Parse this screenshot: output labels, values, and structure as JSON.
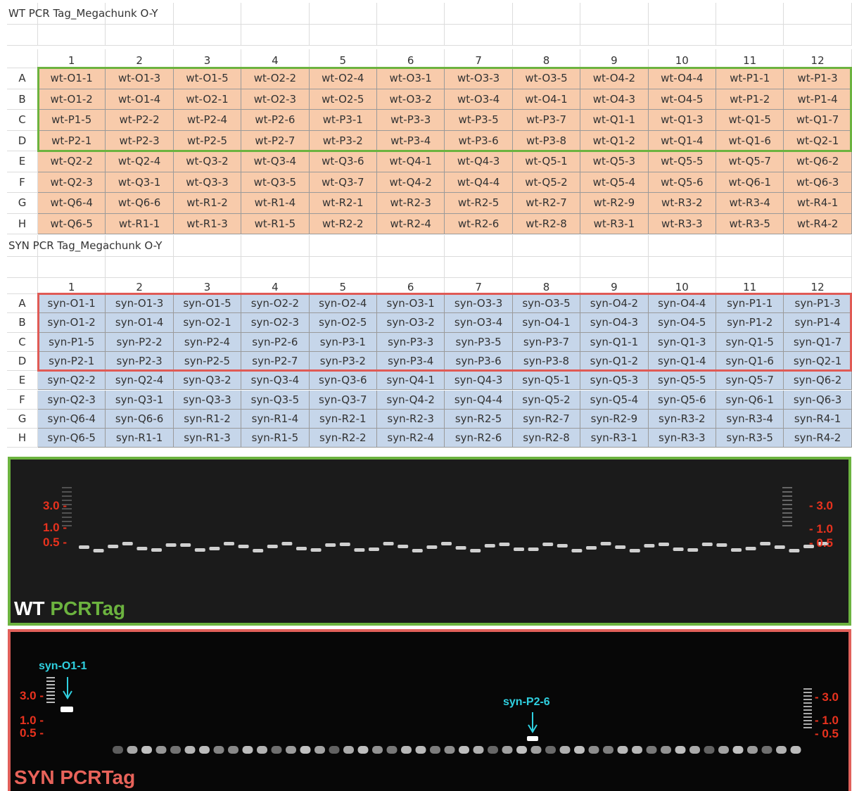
{
  "wt_table": {
    "title": "WT PCR Tag_Megachunk O-Y",
    "columns": [
      1,
      2,
      3,
      4,
      5,
      6,
      7,
      8,
      9,
      10,
      11,
      12
    ],
    "rows": [
      {
        "label": "A",
        "cells": [
          "wt-O1-1",
          "wt-O1-3",
          "wt-O1-5",
          "wt-O2-2",
          "wt-O2-4",
          "wt-O3-1",
          "wt-O3-3",
          "wt-O3-5",
          "wt-O4-2",
          "wt-O4-4",
          "wt-P1-1",
          "wt-P1-3"
        ]
      },
      {
        "label": "B",
        "cells": [
          "wt-O1-2",
          "wt-O1-4",
          "wt-O2-1",
          "wt-O2-3",
          "wt-O2-5",
          "wt-O3-2",
          "wt-O3-4",
          "wt-O4-1",
          "wt-O4-3",
          "wt-O4-5",
          "wt-P1-2",
          "wt-P1-4"
        ]
      },
      {
        "label": "C",
        "cells": [
          "wt-P1-5",
          "wt-P2-2",
          "wt-P2-4",
          "wt-P2-6",
          "wt-P3-1",
          "wt-P3-3",
          "wt-P3-5",
          "wt-P3-7",
          "wt-Q1-1",
          "wt-Q1-3",
          "wt-Q1-5",
          "wt-Q1-7"
        ]
      },
      {
        "label": "D",
        "cells": [
          "wt-P2-1",
          "wt-P2-3",
          "wt-P2-5",
          "wt-P2-7",
          "wt-P3-2",
          "wt-P3-4",
          "wt-P3-6",
          "wt-P3-8",
          "wt-Q1-2",
          "wt-Q1-4",
          "wt-Q1-6",
          "wt-Q2-1"
        ]
      },
      {
        "label": "E",
        "cells": [
          "wt-Q2-2",
          "wt-Q2-4",
          "wt-Q3-2",
          "wt-Q3-4",
          "wt-Q3-6",
          "wt-Q4-1",
          "wt-Q4-3",
          "wt-Q5-1",
          "wt-Q5-3",
          "wt-Q5-5",
          "wt-Q5-7",
          "wt-Q6-2"
        ]
      },
      {
        "label": "F",
        "cells": [
          "wt-Q2-3",
          "wt-Q3-1",
          "wt-Q3-3",
          "wt-Q3-5",
          "wt-Q3-7",
          "wt-Q4-2",
          "wt-Q4-4",
          "wt-Q5-2",
          "wt-Q5-4",
          "wt-Q5-6",
          "wt-Q6-1",
          "wt-Q6-3"
        ]
      },
      {
        "label": "G",
        "cells": [
          "wt-Q6-4",
          "wt-Q6-6",
          "wt-R1-2",
          "wt-R1-4",
          "wt-R2-1",
          "wt-R2-3",
          "wt-R2-5",
          "wt-R2-7",
          "wt-R2-9",
          "wt-R3-2",
          "wt-R3-4",
          "wt-R4-1"
        ]
      },
      {
        "label": "H",
        "cells": [
          "wt-Q6-5",
          "wt-R1-1",
          "wt-R1-3",
          "wt-R1-5",
          "wt-R2-2",
          "wt-R2-4",
          "wt-R2-6",
          "wt-R2-8",
          "wt-R3-1",
          "wt-R3-3",
          "wt-R3-5",
          "wt-R4-2"
        ]
      }
    ]
  },
  "syn_table": {
    "title": "SYN PCR Tag_Megachunk O-Y",
    "columns": [
      1,
      2,
      3,
      4,
      5,
      6,
      7,
      8,
      9,
      10,
      11,
      12
    ],
    "rows": [
      {
        "label": "A",
        "cells": [
          "syn-O1-1",
          "syn-O1-3",
          "syn-O1-5",
          "syn-O2-2",
          "syn-O2-4",
          "syn-O3-1",
          "syn-O3-3",
          "syn-O3-5",
          "syn-O4-2",
          "syn-O4-4",
          "syn-P1-1",
          "syn-P1-3"
        ]
      },
      {
        "label": "B",
        "cells": [
          "syn-O1-2",
          "syn-O1-4",
          "syn-O2-1",
          "syn-O2-3",
          "syn-O2-5",
          "syn-O3-2",
          "syn-O3-4",
          "syn-O4-1",
          "syn-O4-3",
          "syn-O4-5",
          "syn-P1-2",
          "syn-P1-4"
        ]
      },
      {
        "label": "C",
        "cells": [
          "syn-P1-5",
          "syn-P2-2",
          "syn-P2-4",
          "syn-P2-6",
          "syn-P3-1",
          "syn-P3-3",
          "syn-P3-5",
          "syn-P3-7",
          "syn-Q1-1",
          "syn-Q1-3",
          "syn-Q1-5",
          "syn-Q1-7"
        ]
      },
      {
        "label": "D",
        "cells": [
          "syn-P2-1",
          "syn-P2-3",
          "syn-P2-5",
          "syn-P2-7",
          "syn-P3-2",
          "syn-P3-4",
          "syn-P3-6",
          "syn-P3-8",
          "syn-Q1-2",
          "syn-Q1-4",
          "syn-Q1-6",
          "syn-Q2-1"
        ]
      },
      {
        "label": "E",
        "cells": [
          "syn-Q2-2",
          "syn-Q2-4",
          "syn-Q3-2",
          "syn-Q3-4",
          "syn-Q3-6",
          "syn-Q4-1",
          "syn-Q4-3",
          "syn-Q5-1",
          "syn-Q5-3",
          "syn-Q5-5",
          "syn-Q5-7",
          "syn-Q6-2"
        ]
      },
      {
        "label": "F",
        "cells": [
          "syn-Q2-3",
          "syn-Q3-1",
          "syn-Q3-3",
          "syn-Q3-5",
          "syn-Q3-7",
          "syn-Q4-2",
          "syn-Q4-4",
          "syn-Q5-2",
          "syn-Q5-4",
          "syn-Q5-6",
          "syn-Q6-1",
          "syn-Q6-3"
        ]
      },
      {
        "label": "G",
        "cells": [
          "syn-Q6-4",
          "syn-Q6-6",
          "syn-R1-2",
          "syn-R1-4",
          "syn-R2-1",
          "syn-R2-3",
          "syn-R2-5",
          "syn-R2-7",
          "syn-R2-9",
          "syn-R3-2",
          "syn-R3-4",
          "syn-R4-1"
        ]
      },
      {
        "label": "H",
        "cells": [
          "syn-Q6-5",
          "syn-R1-1",
          "syn-R1-3",
          "syn-R1-5",
          "syn-R2-2",
          "syn-R2-4",
          "syn-R2-6",
          "syn-R2-8",
          "syn-R3-1",
          "syn-R3-3",
          "syn-R3-5",
          "syn-R4-2"
        ]
      }
    ]
  },
  "wt_gel": {
    "size_labels_left": [
      "3.0 -",
      "1.0 -",
      "0.5 -"
    ],
    "size_labels_right": [
      "- 3.0",
      "- 1.0",
      "- 0.5"
    ],
    "label_prefix": "WT",
    "label_suffix": "PCRTag"
  },
  "syn_gel": {
    "size_labels_left": [
      "3.0 -",
      "1.0 -",
      "0.5 -"
    ],
    "size_labels_right": [
      "- 3.0",
      "- 1.0",
      "- 0.5"
    ],
    "label": "SYN PCRTag",
    "annotations": [
      "syn-O1-1",
      "syn-P2-6"
    ]
  }
}
